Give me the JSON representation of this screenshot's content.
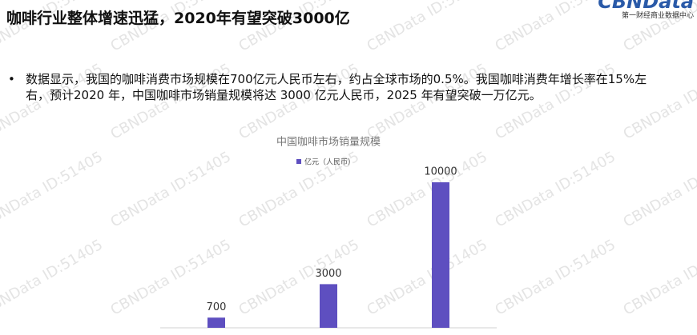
{
  "title": "咖啡行业整体增速迅猛，2020年有望突破3000亿",
  "logo": {
    "name": "CBNData",
    "subtitle": "第一财经商业数据中心"
  },
  "bullet": "数据显示，我国的咖啡消费市场规模在700亿元人民币左右，约占全球市场的0.5%。我国咖啡消费年增长率在15%左右，预计2020 年，中国咖啡市场销量规模将达 3000 亿元人民币，2025 年有望突破一万亿元。",
  "watermark": "CBNData ID:51405",
  "chart_data": {
    "type": "bar",
    "title": "中国咖啡市场销量规模",
    "categories": [
      null,
      null,
      null
    ],
    "series": [
      {
        "name": "亿元（人民币）",
        "color": "#5e4fc0",
        "values": [
          700,
          3000,
          10000
        ]
      }
    ],
    "ylim": [
      0,
      10000
    ]
  }
}
